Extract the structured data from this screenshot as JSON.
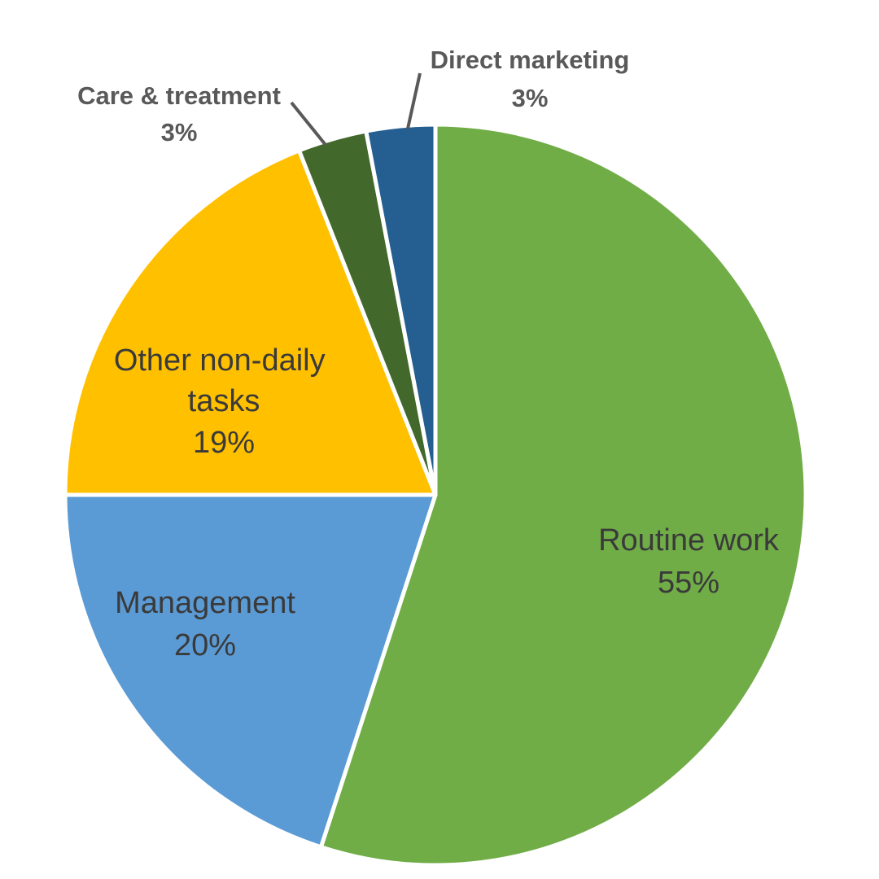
{
  "chart_data": {
    "type": "pie",
    "title": "",
    "slices": [
      {
        "name": "Routine work",
        "value": 55,
        "label": "55%",
        "color": "#70AD47",
        "label_position": "inside"
      },
      {
        "name": "Management",
        "value": 20,
        "label": "20%",
        "color": "#5B9BD5",
        "label_position": "inside"
      },
      {
        "name": "Other non-daily tasks",
        "value": 19,
        "label": "19%",
        "color": "#FFC000",
        "label_position": "inside"
      },
      {
        "name": "Care & treatment",
        "value": 3,
        "label": "3%",
        "color": "#43682B",
        "label_position": "outside"
      },
      {
        "name": "Direct marketing",
        "value": 3,
        "label": "3%",
        "color": "#255E91",
        "label_position": "outside"
      }
    ],
    "start_angle": "12 o'clock",
    "direction": "clockwise",
    "legend": "none"
  }
}
